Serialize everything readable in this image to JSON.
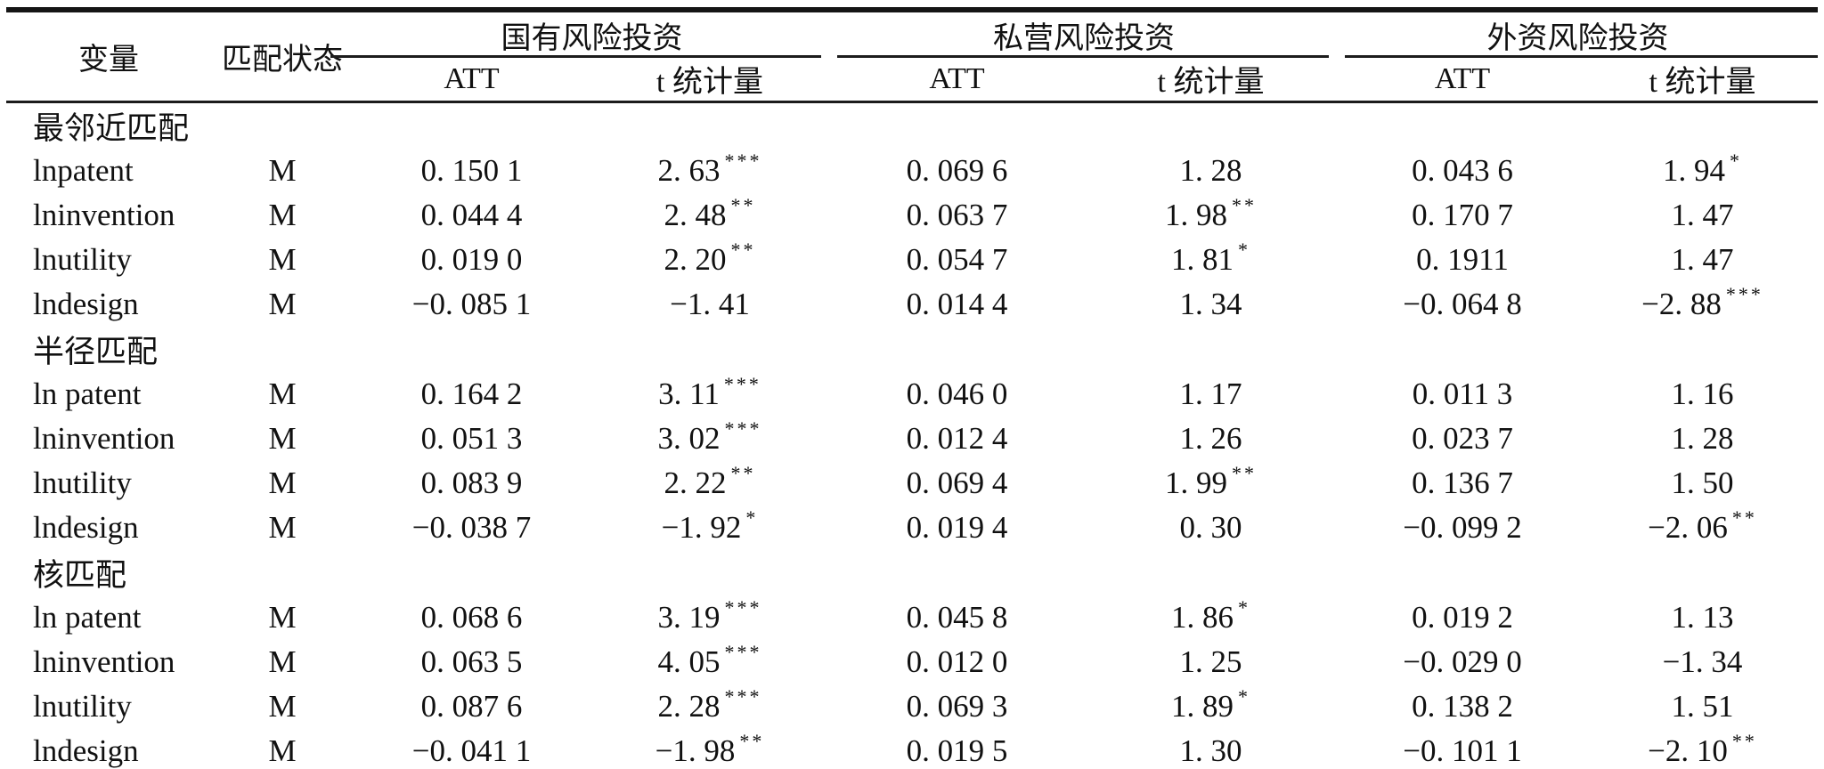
{
  "table": {
    "header": {
      "variable": "变量",
      "match_status": "匹配状态"
    },
    "groups": [
      {
        "label": "国有风险投资",
        "sub": [
          "ATT",
          "t 统计量"
        ]
      },
      {
        "label": "私营风险投资",
        "sub": [
          "ATT",
          "t 统计量"
        ]
      },
      {
        "label": "外资风险投资",
        "sub": [
          "ATT",
          "t 统计量"
        ]
      }
    ],
    "sections": [
      {
        "title": "最邻近匹配",
        "rows": [
          {
            "variable": "lnpatent",
            "match": "M",
            "cells": [
              {
                "v": "0. 150 1"
              },
              {
                "v": "2. 63",
                "s": "***"
              },
              {
                "v": "0. 069 6"
              },
              {
                "v": "1. 28"
              },
              {
                "v": "0. 043 6"
              },
              {
                "v": "1. 94",
                "s": "*"
              }
            ]
          },
          {
            "variable": "lninvention",
            "match": "M",
            "cells": [
              {
                "v": "0. 044 4"
              },
              {
                "v": "2. 48",
                "s": "**"
              },
              {
                "v": "0. 063 7"
              },
              {
                "v": "1. 98",
                "s": "**"
              },
              {
                "v": "0. 170 7"
              },
              {
                "v": "1. 47"
              }
            ]
          },
          {
            "variable": "lnutility",
            "match": "M",
            "cells": [
              {
                "v": "0. 019 0"
              },
              {
                "v": "2. 20",
                "s": "**"
              },
              {
                "v": "0. 054 7"
              },
              {
                "v": "1. 81",
                "s": "*"
              },
              {
                "v": "0. 1911"
              },
              {
                "v": "1. 47"
              }
            ]
          },
          {
            "variable": "lndesign",
            "match": "M",
            "cells": [
              {
                "v": "−0. 085 1"
              },
              {
                "v": "−1. 41"
              },
              {
                "v": "0. 014 4"
              },
              {
                "v": "1. 34"
              },
              {
                "v": "−0. 064 8"
              },
              {
                "v": "−2. 88",
                "s": "***"
              }
            ]
          }
        ]
      },
      {
        "title": "半径匹配",
        "rows": [
          {
            "variable": "ln patent",
            "match": "M",
            "cells": [
              {
                "v": "0. 164 2"
              },
              {
                "v": "3. 11",
                "s": "***"
              },
              {
                "v": "0. 046 0"
              },
              {
                "v": "1. 17"
              },
              {
                "v": "0. 011 3"
              },
              {
                "v": "1. 16"
              }
            ]
          },
          {
            "variable": "lninvention",
            "match": "M",
            "cells": [
              {
                "v": "0. 051 3"
              },
              {
                "v": "3. 02",
                "s": "***"
              },
              {
                "v": "0. 012 4"
              },
              {
                "v": "1. 26"
              },
              {
                "v": "0. 023 7"
              },
              {
                "v": "1. 28"
              }
            ]
          },
          {
            "variable": "lnutility",
            "match": "M",
            "cells": [
              {
                "v": "0. 083 9"
              },
              {
                "v": "2. 22",
                "s": "**"
              },
              {
                "v": "0. 069 4"
              },
              {
                "v": "1. 99",
                "s": "**"
              },
              {
                "v": "0. 136 7"
              },
              {
                "v": "1. 50"
              }
            ]
          },
          {
            "variable": "lndesign",
            "match": "M",
            "cells": [
              {
                "v": "−0. 038 7"
              },
              {
                "v": "−1. 92",
                "s": "*"
              },
              {
                "v": "0. 019 4"
              },
              {
                "v": "0. 30"
              },
              {
                "v": "−0. 099 2"
              },
              {
                "v": "−2. 06",
                "s": "**"
              }
            ]
          }
        ]
      },
      {
        "title": "核匹配",
        "rows": [
          {
            "variable": "ln patent",
            "match": "M",
            "cells": [
              {
                "v": "0. 068 6"
              },
              {
                "v": "3. 19",
                "s": "***"
              },
              {
                "v": "0. 045 8"
              },
              {
                "v": "1. 86",
                "s": "*"
              },
              {
                "v": "0. 019 2"
              },
              {
                "v": "1. 13"
              }
            ]
          },
          {
            "variable": "lninvention",
            "match": "M",
            "cells": [
              {
                "v": "0. 063 5"
              },
              {
                "v": "4. 05",
                "s": "***"
              },
              {
                "v": "0. 012 0"
              },
              {
                "v": "1. 25"
              },
              {
                "v": "−0. 029 0"
              },
              {
                "v": "−1. 34"
              }
            ]
          },
          {
            "variable": "lnutility",
            "match": "M",
            "cells": [
              {
                "v": "0. 087 6"
              },
              {
                "v": "2. 28",
                "s": "***"
              },
              {
                "v": "0. 069 3"
              },
              {
                "v": "1. 89",
                "s": "*"
              },
              {
                "v": "0. 138 2"
              },
              {
                "v": "1. 51"
              }
            ]
          },
          {
            "variable": "lndesign",
            "match": "M",
            "cells": [
              {
                "v": "−0. 041 1"
              },
              {
                "v": "−1. 98",
                "s": "**"
              },
              {
                "v": "0. 019 5"
              },
              {
                "v": "1. 30"
              },
              {
                "v": "−0. 101 1"
              },
              {
                "v": "−2. 10",
                "s": "**"
              }
            ]
          }
        ]
      }
    ]
  }
}
